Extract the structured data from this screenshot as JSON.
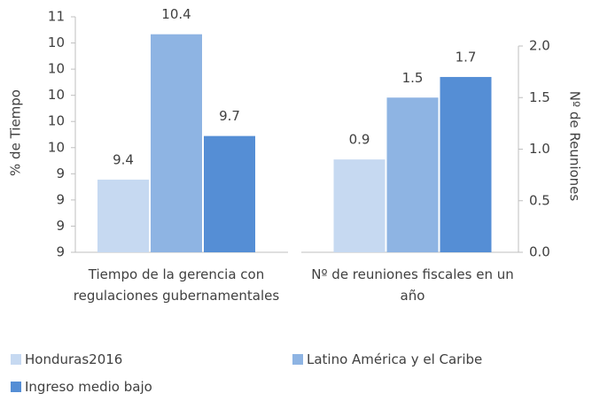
{
  "chart_data": [
    {
      "type": "bar",
      "categories": [
        "Tiempo de la gerencia con regulaciones gubernamentales"
      ],
      "ylabel": "% de Tiempo",
      "ylim": [
        8.9,
        10.52
      ],
      "yticks": [
        {
          "value": 8.9,
          "label": "9"
        },
        {
          "value": 9.08,
          "label": "9"
        },
        {
          "value": 9.26,
          "label": "9"
        },
        {
          "value": 9.44,
          "label": "9"
        },
        {
          "value": 9.62,
          "label": "10"
        },
        {
          "value": 9.8,
          "label": "10"
        },
        {
          "value": 9.98,
          "label": "10"
        },
        {
          "value": 10.16,
          "label": "10"
        },
        {
          "value": 10.34,
          "label": "10"
        },
        {
          "value": 10.52,
          "label": "11"
        }
      ],
      "series": [
        {
          "name": "Honduras2016",
          "color": "#c6d9f1",
          "values": [
            9.4
          ]
        },
        {
          "name": "Latino América y el Caribe",
          "color": "#8eb4e3",
          "values": [
            10.4
          ]
        },
        {
          "name": "Ingreso medio bajo",
          "color": "#558ed5",
          "values": [
            9.7
          ]
        }
      ]
    },
    {
      "type": "bar",
      "categories": [
        "Nº de reuniones fiscales en un año"
      ],
      "y2label": "Nº de Reuniones",
      "y2lim": [
        0,
        2
      ],
      "y2ticks": [
        {
          "value": 0,
          "label": "0.0"
        },
        0.5,
        {
          "value": 1,
          "label": "1.0"
        },
        1.5,
        {
          "value": 2,
          "label": "2.0"
        }
      ],
      "series": [
        {
          "color": "#c6d9f1",
          "values": [
            0.9
          ],
          "axis": "y2"
        },
        {
          "color": "#8eb4e3",
          "values": [
            1.5
          ],
          "axis": "y2"
        },
        {
          "color": "#558ed5",
          "values": [
            1.7
          ],
          "axis": "y2"
        }
      ]
    }
  ]
}
